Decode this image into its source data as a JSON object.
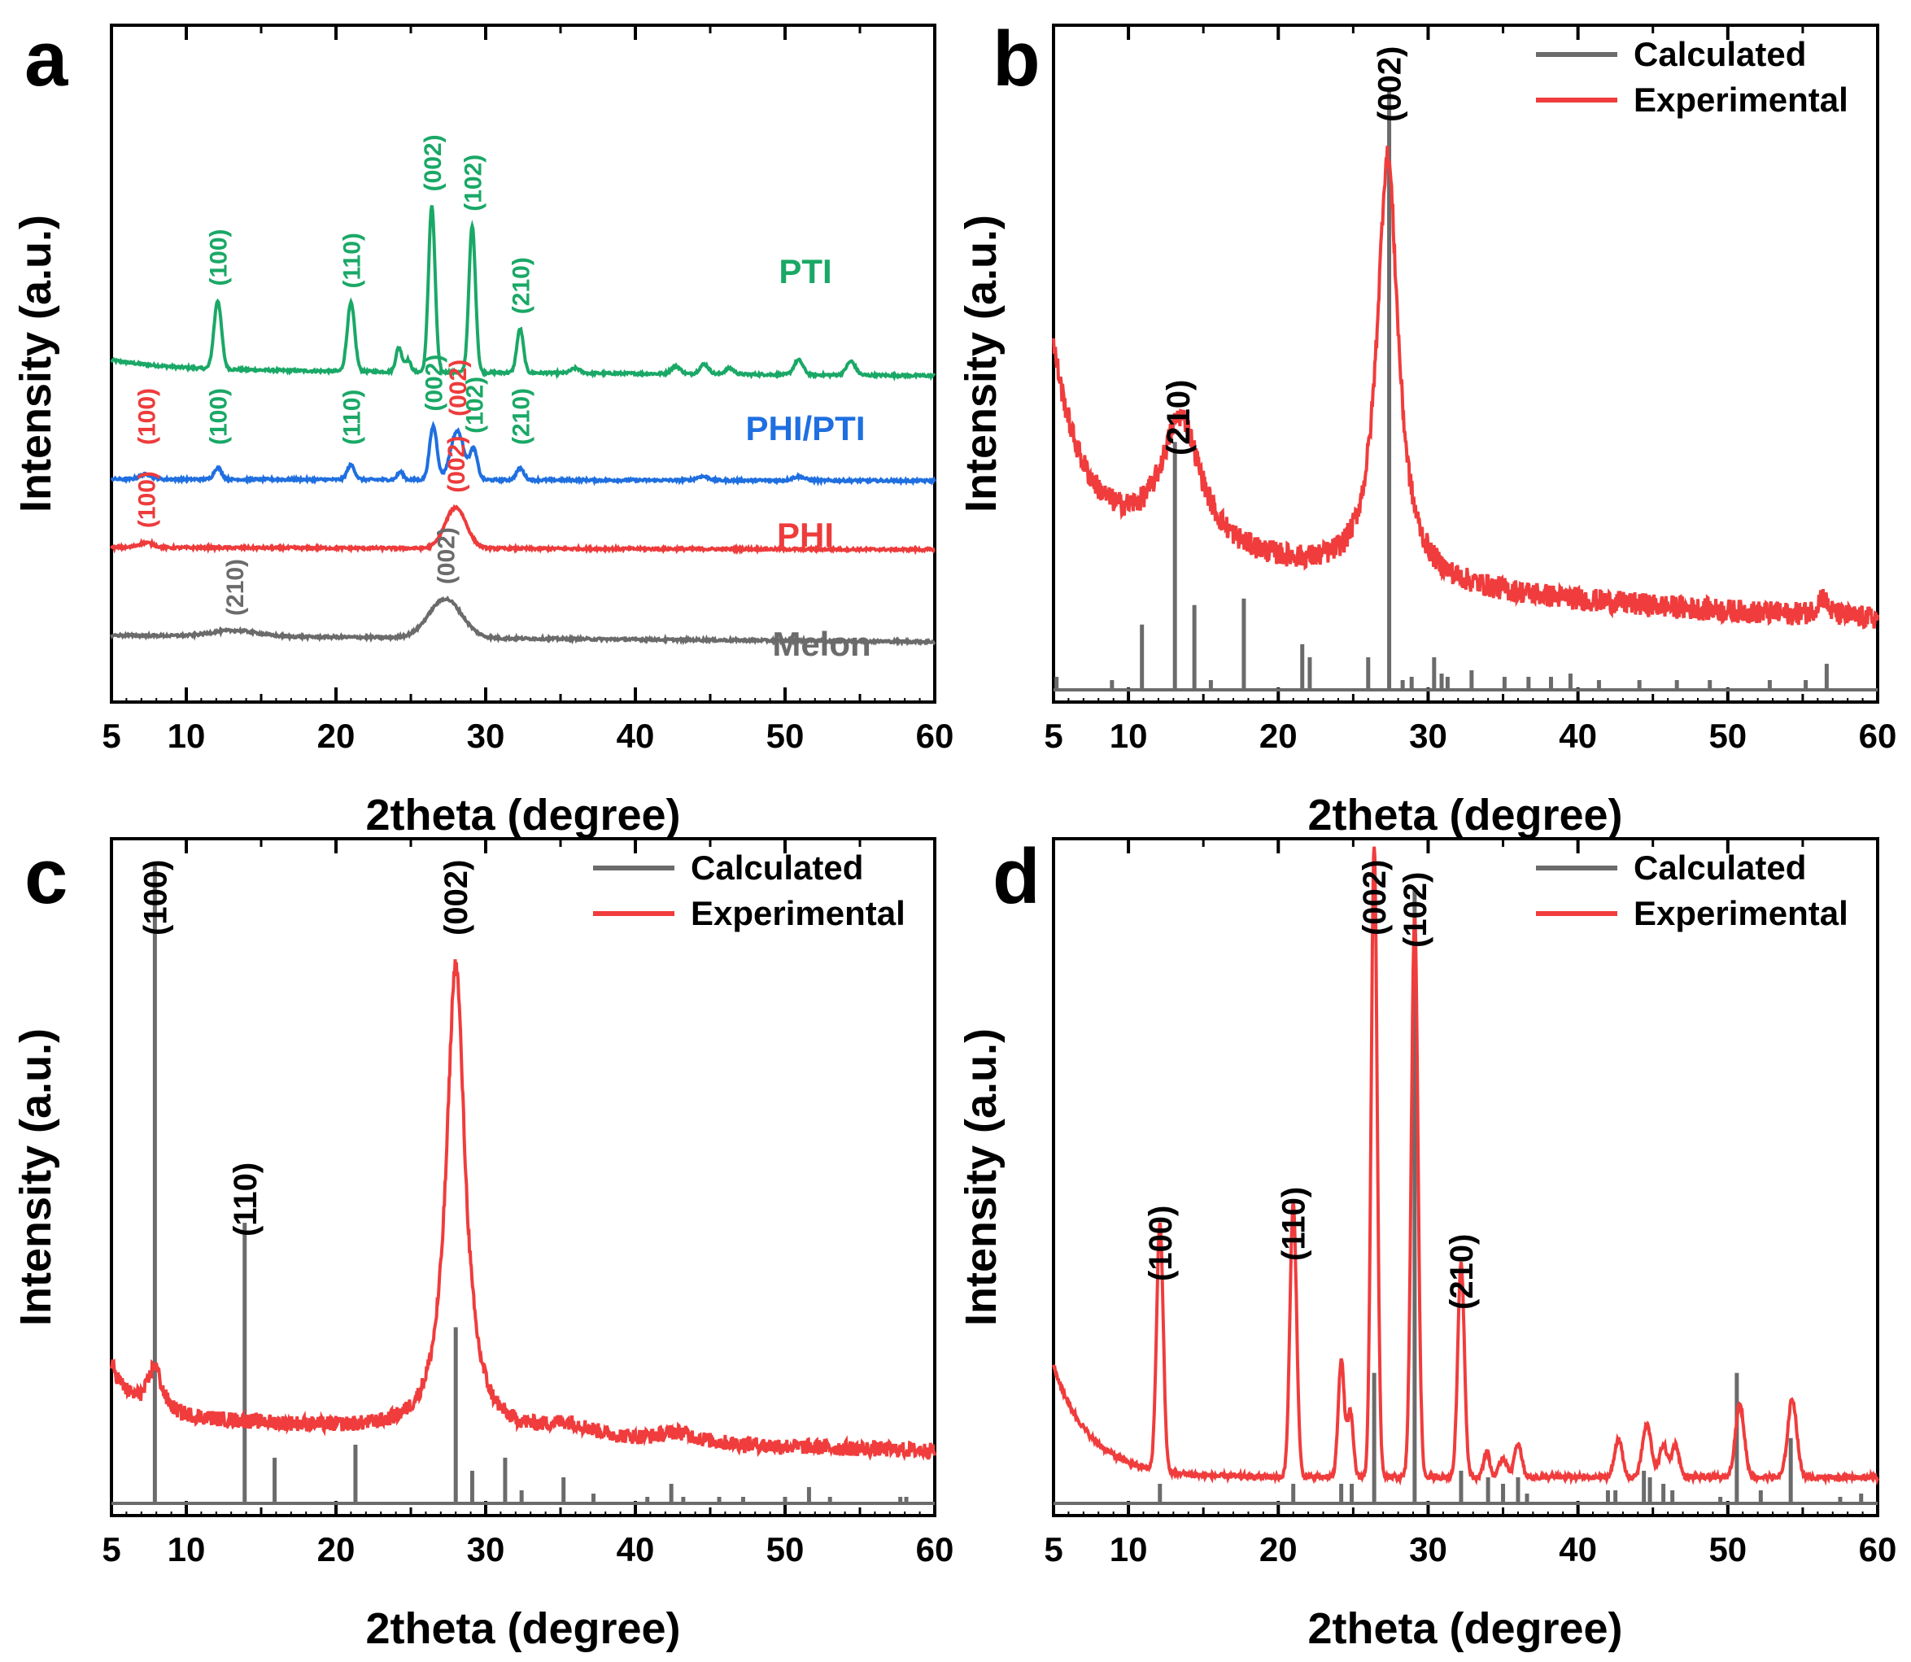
{
  "figure": {
    "axis_title_x": "2theta (degree)",
    "axis_title_y": "Intensity (a.u.)"
  },
  "colors": {
    "PTI": "#1aa866",
    "PHI_PTI": "#1f6fe0",
    "PHI": "#ee3b3b",
    "Melon": "#6b6b6b",
    "calculated": "#6b6b6b",
    "experimental": "#f03c3c",
    "axis": "#000000"
  },
  "chart_data": [
    {
      "panel": "a",
      "type": "line",
      "xlabel": "2theta (degree)",
      "ylabel": "Intensity (a.u.)",
      "xlim": [
        5,
        60
      ],
      "xticks": [
        5,
        10,
        20,
        30,
        40,
        50,
        60
      ],
      "yticks": "none (arbitrary units, stacked)",
      "series": [
        {
          "name": "PTI",
          "color_key": "PTI",
          "offset": 3.05,
          "base": 0.12,
          "slope": -0.0011,
          "peaks": [
            [
              12.1,
              0.7,
              0.25
            ],
            [
              21.0,
              0.7,
              0.25
            ],
            [
              24.2,
              0.25,
              0.2
            ],
            [
              24.8,
              0.12,
              0.2
            ],
            [
              26.4,
              1.7,
              0.22
            ],
            [
              29.1,
              1.5,
              0.22
            ],
            [
              32.3,
              0.45,
              0.22
            ],
            [
              36.0,
              0.05,
              0.3
            ],
            [
              42.7,
              0.08,
              0.3
            ],
            [
              44.6,
              0.1,
              0.3
            ],
            [
              46.3,
              0.06,
              0.3
            ],
            [
              50.9,
              0.15,
              0.3
            ],
            [
              54.4,
              0.14,
              0.3
            ]
          ]
        },
        {
          "name": "PHI/PTI",
          "color_key": "PHI_PTI",
          "offset": 2.0,
          "base": 0.05,
          "slope": -0.0003,
          "peaks": [
            [
              7.3,
              0.05,
              0.4
            ],
            [
              12.1,
              0.12,
              0.25
            ],
            [
              21.0,
              0.15,
              0.25
            ],
            [
              24.3,
              0.08,
              0.2
            ],
            [
              26.5,
              0.55,
              0.25
            ],
            [
              28.1,
              0.5,
              0.45
            ],
            [
              29.2,
              0.3,
              0.25
            ],
            [
              32.3,
              0.12,
              0.25
            ],
            [
              44.5,
              0.04,
              0.4
            ],
            [
              50.9,
              0.04,
              0.4
            ]
          ]
        },
        {
          "name": "PHI",
          "color_key": "PHI",
          "offset": 1.3,
          "base": 0.05,
          "slope": -0.0004,
          "peaks": [
            [
              7.3,
              0.05,
              0.5
            ],
            [
              28.0,
              0.42,
              0.7
            ]
          ]
        },
        {
          "name": "Melon",
          "color_key": "Melon",
          "offset": 0.35,
          "base": 0.1,
          "slope": -0.0012,
          "peaks": [
            [
              13.2,
              0.06,
              1.5
            ],
            [
              27.3,
              0.4,
              1.1
            ]
          ]
        }
      ],
      "annotations": [
        {
          "text": "(100)",
          "x": 12.1,
          "series": "PTI",
          "color_key": "PTI"
        },
        {
          "text": "(110)",
          "x": 21.0,
          "series": "PTI",
          "color_key": "PTI"
        },
        {
          "text": "(002)",
          "x": 26.4,
          "series": "PTI",
          "color_key": "PTI"
        },
        {
          "text": "(102)",
          "x": 29.1,
          "series": "PTI",
          "color_key": "PTI"
        },
        {
          "text": "(210)",
          "x": 32.3,
          "series": "PTI",
          "color_key": "PTI"
        },
        {
          "text": "(100)",
          "x": 7.3,
          "series": "PHI/PTI",
          "color_key": "PHI"
        },
        {
          "text": "(100)",
          "x": 12.1,
          "series": "PHI/PTI",
          "color_key": "PTI"
        },
        {
          "text": "(110)",
          "x": 21.0,
          "series": "PHI/PTI",
          "color_key": "PTI"
        },
        {
          "text": "(002)",
          "x": 26.5,
          "series": "PHI/PTI",
          "color_key": "PTI"
        },
        {
          "text": "(002)",
          "x": 28.1,
          "series": "PHI/PTI",
          "color_key": "PHI"
        },
        {
          "text": "(102)",
          "x": 29.2,
          "series": "PHI/PTI",
          "color_key": "PTI"
        },
        {
          "text": "(210)",
          "x": 32.3,
          "series": "PHI/PTI",
          "color_key": "PTI"
        },
        {
          "text": "(100)",
          "x": 7.3,
          "series": "PHI",
          "color_key": "PHI"
        },
        {
          "text": "(002)",
          "x": 28.0,
          "series": "PHI",
          "color_key": "PHI"
        },
        {
          "text": "(210)",
          "x": 13.2,
          "series": "Melon",
          "color_key": "Melon"
        },
        {
          "text": "(002)",
          "x": 27.3,
          "series": "Melon",
          "color_key": "Melon"
        }
      ],
      "series_labels": [
        {
          "text": "PTI",
          "series": "PTI"
        },
        {
          "text": "PHI/PTI",
          "series": "PHI/PTI"
        },
        {
          "text": "PHI",
          "series": "PHI"
        },
        {
          "text": "Melon",
          "series": "Melon"
        }
      ]
    },
    {
      "panel": "b",
      "type": "line",
      "xlabel": "2theta (degree)",
      "ylabel": "Intensity (a.u.)",
      "xlim": [
        5,
        60
      ],
      "xticks": [
        5,
        10,
        20,
        30,
        40,
        50,
        60
      ],
      "legend": [
        {
          "label": "Calculated",
          "color_key": "calculated"
        },
        {
          "label": "Experimental",
          "color_key": "experimental"
        }
      ],
      "calculated_sticks": [
        [
          5.2,
          0.02
        ],
        [
          8.9,
          0.015
        ],
        [
          10.9,
          0.1
        ],
        [
          13.1,
          0.38
        ],
        [
          14.4,
          0.13
        ],
        [
          15.5,
          0.015
        ],
        [
          17.7,
          0.14
        ],
        [
          21.6,
          0.07
        ],
        [
          22.1,
          0.05
        ],
        [
          26.0,
          0.05
        ],
        [
          27.4,
          0.92
        ],
        [
          28.3,
          0.015
        ],
        [
          28.9,
          0.02
        ],
        [
          30.4,
          0.05
        ],
        [
          30.9,
          0.025
        ],
        [
          31.3,
          0.02
        ],
        [
          32.9,
          0.03
        ],
        [
          35.1,
          0.02
        ],
        [
          36.7,
          0.02
        ],
        [
          38.2,
          0.02
        ],
        [
          39.5,
          0.025
        ],
        [
          41.4,
          0.015
        ],
        [
          44.1,
          0.015
        ],
        [
          46.6,
          0.015
        ],
        [
          48.8,
          0.015
        ],
        [
          52.8,
          0.015
        ],
        [
          55.2,
          0.015
        ],
        [
          56.6,
          0.04
        ]
      ],
      "experimental": {
        "base_start": 0.52,
        "base_end": 0.08,
        "peaks": [
          [
            13.5,
            0.2,
            1.6
          ],
          [
            27.3,
            0.65,
            0.85
          ],
          [
            56.3,
            0.03,
            0.4
          ]
        ],
        "noise": 0.018
      },
      "annotations": [
        {
          "text": "(210)",
          "x": 13.3
        },
        {
          "text": "(002)",
          "x": 27.4
        }
      ]
    },
    {
      "panel": "c",
      "type": "line",
      "xlabel": "2theta (degree)",
      "ylabel": "Intensity (a.u.)",
      "xlim": [
        5,
        60
      ],
      "xticks": [
        5,
        10,
        20,
        30,
        40,
        50,
        60
      ],
      "legend": [
        {
          "label": "Calculated",
          "color_key": "calculated"
        },
        {
          "label": "Experimental",
          "color_key": "experimental"
        }
      ],
      "calculated_sticks": [
        [
          7.9,
          0.98
        ],
        [
          13.9,
          0.43
        ],
        [
          15.9,
          0.07
        ],
        [
          21.3,
          0.09
        ],
        [
          28.0,
          0.27
        ],
        [
          29.1,
          0.05
        ],
        [
          31.3,
          0.07
        ],
        [
          32.4,
          0.02
        ],
        [
          35.2,
          0.04
        ],
        [
          37.2,
          0.015
        ],
        [
          40.8,
          0.01
        ],
        [
          42.4,
          0.03
        ],
        [
          43.2,
          0.01
        ],
        [
          45.6,
          0.01
        ],
        [
          47.2,
          0.01
        ],
        [
          50.0,
          0.01
        ],
        [
          51.6,
          0.025
        ],
        [
          53.0,
          0.01
        ],
        [
          57.7,
          0.01
        ],
        [
          58.1,
          0.01
        ]
      ],
      "experimental": {
        "base_start": 0.2,
        "base_end": 0.06,
        "peaks": [
          [
            7.9,
            0.07,
            0.55
          ],
          [
            28.0,
            0.72,
            0.75
          ],
          [
            35.5,
            0.02,
            2.0
          ],
          [
            42.8,
            0.015,
            1.5
          ]
        ],
        "noise": 0.012
      },
      "annotations": [
        {
          "text": "(100)",
          "x": 7.9
        },
        {
          "text": "(110)",
          "x": 13.9
        },
        {
          "text": "(002)",
          "x": 28.0
        }
      ]
    },
    {
      "panel": "d",
      "type": "line",
      "xlabel": "2theta (degree)",
      "ylabel": "Intensity (a.u.)",
      "xlim": [
        5,
        60
      ],
      "xticks": [
        5,
        10,
        20,
        30,
        40,
        50,
        60
      ],
      "legend": [
        {
          "label": "Calculated",
          "color_key": "calculated"
        },
        {
          "label": "Experimental",
          "color_key": "experimental"
        }
      ],
      "calculated_sticks": [
        [
          12.1,
          0.03
        ],
        [
          21.0,
          0.03
        ],
        [
          24.2,
          0.03
        ],
        [
          24.9,
          0.03
        ],
        [
          26.4,
          0.2
        ],
        [
          29.1,
          0.94
        ],
        [
          32.2,
          0.05
        ],
        [
          34.0,
          0.04
        ],
        [
          35.0,
          0.03
        ],
        [
          36.0,
          0.04
        ],
        [
          36.6,
          0.015
        ],
        [
          42.0,
          0.02
        ],
        [
          42.5,
          0.02
        ],
        [
          44.4,
          0.05
        ],
        [
          44.8,
          0.04
        ],
        [
          45.7,
          0.03
        ],
        [
          46.3,
          0.02
        ],
        [
          49.5,
          0.01
        ],
        [
          50.6,
          0.2
        ],
        [
          52.2,
          0.02
        ],
        [
          54.2,
          0.1
        ],
        [
          57.5,
          0.01
        ],
        [
          58.9,
          0.015
        ]
      ],
      "experimental": {
        "base_start": 0.2,
        "base_end": 0.03,
        "peaks": [
          [
            12.1,
            0.38,
            0.22
          ],
          [
            21.0,
            0.42,
            0.22
          ],
          [
            24.2,
            0.18,
            0.2
          ],
          [
            24.8,
            0.1,
            0.2
          ],
          [
            26.4,
            0.97,
            0.2
          ],
          [
            29.1,
            0.86,
            0.22
          ],
          [
            32.2,
            0.33,
            0.22
          ],
          [
            33.9,
            0.04,
            0.2
          ],
          [
            35.0,
            0.03,
            0.25
          ],
          [
            36.0,
            0.05,
            0.25
          ],
          [
            42.7,
            0.06,
            0.25
          ],
          [
            44.6,
            0.08,
            0.3
          ],
          [
            45.7,
            0.05,
            0.25
          ],
          [
            46.5,
            0.05,
            0.25
          ],
          [
            50.8,
            0.11,
            0.3
          ],
          [
            54.3,
            0.12,
            0.3
          ]
        ],
        "noise": 0.004
      },
      "annotations": [
        {
          "text": "(100)",
          "x": 12.1
        },
        {
          "text": "(110)",
          "x": 21.0
        },
        {
          "text": "(002)",
          "x": 26.4
        },
        {
          "text": "(102)",
          "x": 29.1
        },
        {
          "text": "(210)",
          "x": 32.2
        }
      ]
    }
  ]
}
